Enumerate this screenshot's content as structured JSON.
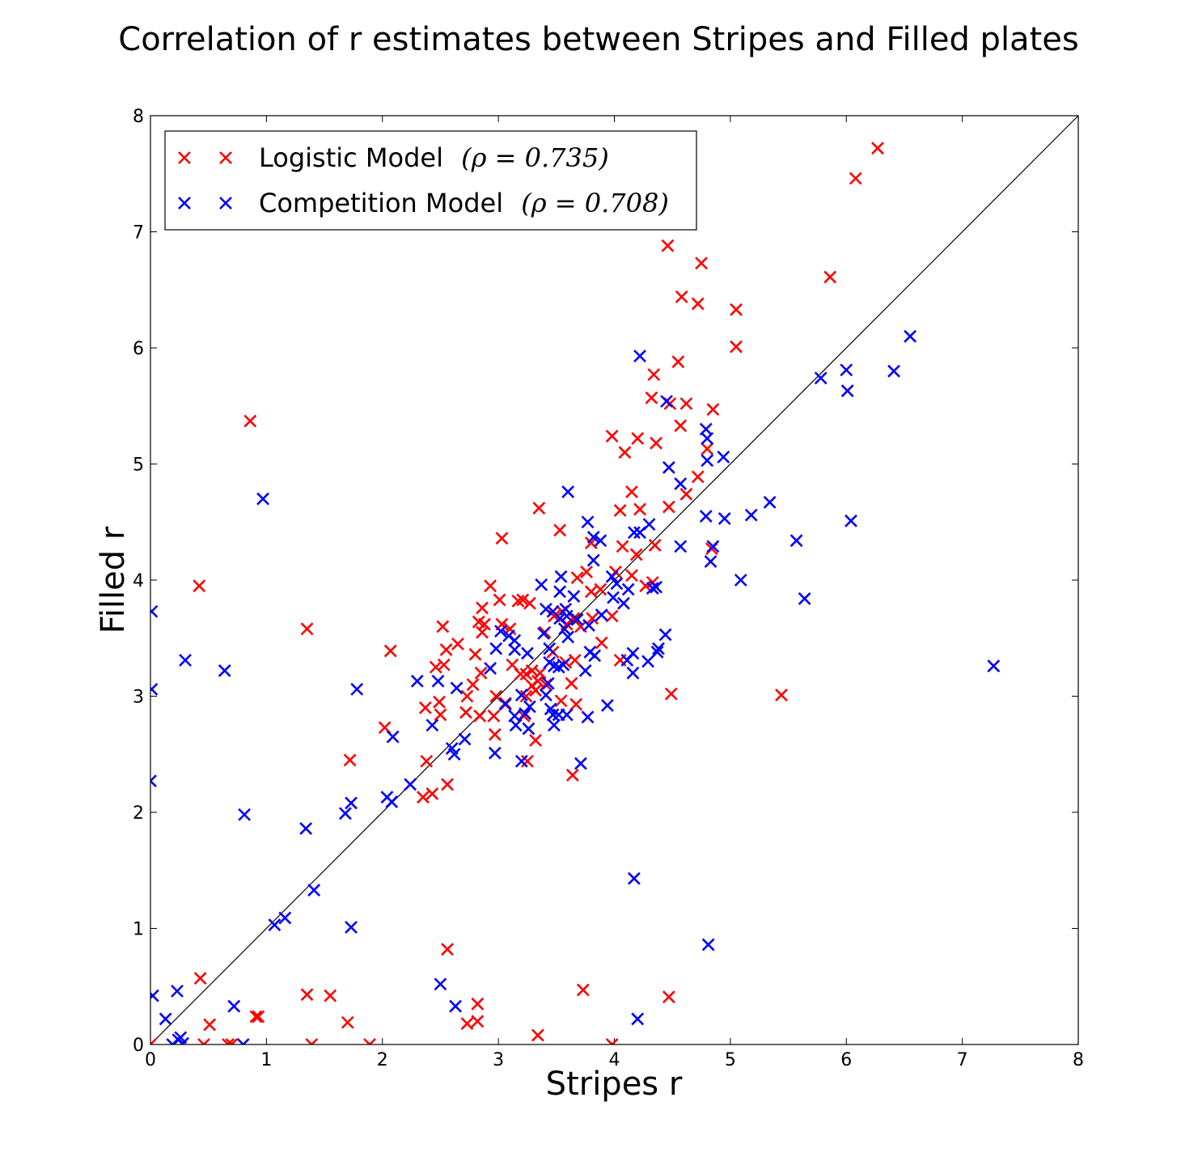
{
  "chart_data": {
    "type": "scatter",
    "title": "Correlation of r estimates between Stripes and Filled plates",
    "xlabel": "Stripes r",
    "ylabel": "Filled r",
    "xlim": [
      0,
      8
    ],
    "ylim": [
      0,
      8
    ],
    "xticks": [
      "0",
      "1",
      "2",
      "3",
      "4",
      "5",
      "6",
      "7",
      "8"
    ],
    "yticks": [
      "0",
      "1",
      "2",
      "3",
      "4",
      "5",
      "6",
      "7",
      "8"
    ],
    "reference_line": "y = x",
    "legend_position": "upper-left",
    "grid": false,
    "series": [
      {
        "name": "Logistic Model",
        "rho_label": "(ρ = 0.735)",
        "color": "#ff0000",
        "marker": "x",
        "points": [
          [
            6.27,
            7.72
          ],
          [
            6.08,
            7.46
          ],
          [
            4.46,
            6.88
          ],
          [
            4.75,
            6.73
          ],
          [
            5.86,
            6.61
          ],
          [
            4.58,
            6.44
          ],
          [
            4.72,
            6.38
          ],
          [
            5.05,
            6.33
          ],
          [
            5.05,
            6.01
          ],
          [
            4.55,
            5.88
          ],
          [
            4.34,
            5.77
          ],
          [
            4.32,
            5.57
          ],
          [
            4.48,
            5.52
          ],
          [
            4.62,
            5.52
          ],
          [
            4.85,
            5.47
          ],
          [
            0.86,
            5.37
          ],
          [
            4.57,
            5.33
          ],
          [
            3.98,
            5.24
          ],
          [
            4.2,
            5.22
          ],
          [
            4.36,
            5.18
          ],
          [
            4.09,
            5.1
          ],
          [
            4.8,
            5.13
          ],
          [
            4.72,
            4.89
          ],
          [
            4.15,
            4.76
          ],
          [
            4.62,
            4.74
          ],
          [
            4.47,
            4.63
          ],
          [
            3.35,
            4.62
          ],
          [
            4.22,
            4.61
          ],
          [
            4.05,
            4.6
          ],
          [
            3.53,
            4.43
          ],
          [
            3.03,
            4.36
          ],
          [
            4.07,
            4.29
          ],
          [
            4.35,
            4.3
          ],
          [
            4.19,
            4.22
          ],
          [
            4.84,
            4.27
          ],
          [
            3.8,
            4.32
          ],
          [
            3.68,
            4.02
          ],
          [
            3.76,
            4.07
          ],
          [
            3.8,
            3.9
          ],
          [
            3.88,
            3.92
          ],
          [
            4.01,
            4.07
          ],
          [
            4.15,
            4.04
          ],
          [
            4.27,
            3.95
          ],
          [
            4.33,
            3.98
          ],
          [
            0.42,
            3.95
          ],
          [
            2.93,
            3.95
          ],
          [
            3.17,
            3.82
          ],
          [
            3.21,
            3.83
          ],
          [
            3.27,
            3.8
          ],
          [
            3.01,
            3.83
          ],
          [
            2.86,
            3.76
          ],
          [
            3.48,
            3.69
          ],
          [
            3.55,
            3.73
          ],
          [
            3.59,
            3.62
          ],
          [
            3.65,
            3.67
          ],
          [
            3.71,
            3.6
          ],
          [
            3.81,
            3.67
          ],
          [
            3.98,
            3.69
          ],
          [
            2.52,
            3.6
          ],
          [
            2.83,
            3.64
          ],
          [
            2.88,
            3.62
          ],
          [
            3.03,
            3.62
          ],
          [
            1.35,
            3.58
          ],
          [
            2.65,
            3.45
          ],
          [
            2.86,
            3.55
          ],
          [
            3.1,
            3.58
          ],
          [
            3.4,
            3.55
          ],
          [
            2.55,
            3.4
          ],
          [
            2.8,
            3.36
          ],
          [
            3.47,
            3.38
          ],
          [
            3.66,
            3.31
          ],
          [
            3.58,
            3.29
          ],
          [
            2.07,
            3.39
          ],
          [
            2.46,
            3.25
          ],
          [
            2.53,
            3.27
          ],
          [
            2.85,
            3.2
          ],
          [
            3.12,
            3.27
          ],
          [
            3.19,
            3.19
          ],
          [
            3.24,
            3.19
          ],
          [
            3.29,
            3.22
          ],
          [
            3.36,
            3.2
          ],
          [
            3.29,
            3.09
          ],
          [
            3.34,
            3.13
          ],
          [
            3.41,
            3.1
          ],
          [
            3.63,
            3.11
          ],
          [
            3.89,
            3.46
          ],
          [
            2.78,
            3.1
          ],
          [
            2.73,
            3.0
          ],
          [
            2.98,
            3.0
          ],
          [
            3.24,
            3.0
          ],
          [
            3.32,
            3.05
          ],
          [
            2.49,
            2.95
          ],
          [
            2.37,
            2.9
          ],
          [
            2.5,
            2.84
          ],
          [
            2.72,
            2.86
          ],
          [
            2.84,
            2.83
          ],
          [
            2.96,
            2.83
          ],
          [
            3.22,
            2.83
          ],
          [
            3.06,
            2.94
          ],
          [
            3.54,
            2.96
          ],
          [
            3.67,
            2.93
          ],
          [
            2.02,
            2.73
          ],
          [
            2.97,
            2.67
          ],
          [
            3.32,
            2.62
          ],
          [
            3.25,
            2.44
          ],
          [
            1.72,
            2.45
          ],
          [
            2.38,
            2.44
          ],
          [
            3.64,
            2.32
          ],
          [
            2.56,
            2.24
          ],
          [
            2.35,
            2.13
          ],
          [
            2.43,
            2.16
          ],
          [
            4.05,
            3.31
          ],
          [
            4.49,
            3.02
          ],
          [
            5.44,
            3.01
          ],
          [
            0.43,
            0.57
          ],
          [
            0.51,
            0.17
          ],
          [
            0.91,
            0.24
          ],
          [
            0.93,
            0.24
          ],
          [
            1.35,
            0.43
          ],
          [
            1.55,
            0.42
          ],
          [
            1.7,
            0.19
          ],
          [
            2.56,
            0.82
          ],
          [
            2.73,
            0.18
          ],
          [
            2.82,
            0.35
          ],
          [
            2.82,
            0.2
          ],
          [
            3.73,
            0.47
          ],
          [
            4.47,
            0.41
          ],
          [
            3.34,
            0.08
          ],
          [
            0.0,
            0.0
          ],
          [
            0.46,
            0.0
          ],
          [
            0.67,
            0.0
          ],
          [
            0.7,
            0.0
          ],
          [
            1.39,
            0.0
          ],
          [
            1.89,
            0.0
          ],
          [
            3.98,
            0.0
          ]
        ]
      },
      {
        "name": "Competition Model",
        "rho_label": "(ρ = 0.708)",
        "color": "#0000ff",
        "marker": "x",
        "points": [
          [
            6.55,
            6.1
          ],
          [
            4.22,
            5.93
          ],
          [
            6.0,
            5.81
          ],
          [
            6.41,
            5.8
          ],
          [
            5.78,
            5.74
          ],
          [
            6.01,
            5.63
          ],
          [
            4.45,
            5.54
          ],
          [
            4.79,
            5.3
          ],
          [
            4.8,
            5.22
          ],
          [
            4.94,
            5.06
          ],
          [
            4.47,
            4.97
          ],
          [
            4.8,
            5.03
          ],
          [
            4.57,
            4.83
          ],
          [
            0.97,
            4.7
          ],
          [
            3.6,
            4.76
          ],
          [
            5.34,
            4.67
          ],
          [
            5.18,
            4.56
          ],
          [
            4.79,
            4.55
          ],
          [
            4.95,
            4.53
          ],
          [
            3.77,
            4.5
          ],
          [
            4.3,
            4.48
          ],
          [
            6.04,
            4.51
          ],
          [
            4.17,
            4.41
          ],
          [
            4.22,
            4.41
          ],
          [
            3.82,
            4.37
          ],
          [
            3.88,
            4.34
          ],
          [
            5.57,
            4.34
          ],
          [
            4.57,
            4.29
          ],
          [
            4.85,
            4.29
          ],
          [
            4.83,
            4.16
          ],
          [
            3.82,
            4.17
          ],
          [
            5.09,
            4.0
          ],
          [
            3.54,
            4.03
          ],
          [
            3.98,
            4.03
          ],
          [
            3.37,
            3.96
          ],
          [
            4.02,
            3.97
          ],
          [
            4.12,
            3.92
          ],
          [
            4.33,
            3.93
          ],
          [
            4.36,
            3.94
          ],
          [
            3.53,
            3.9
          ],
          [
            3.65,
            3.86
          ],
          [
            3.99,
            3.85
          ],
          [
            5.64,
            3.84
          ],
          [
            4.08,
            3.8
          ],
          [
            3.41,
            3.75
          ],
          [
            3.47,
            3.73
          ],
          [
            3.58,
            3.75
          ],
          [
            0.01,
            3.73
          ],
          [
            3.53,
            3.67
          ],
          [
            3.59,
            3.69
          ],
          [
            3.68,
            3.66
          ],
          [
            3.89,
            3.7
          ],
          [
            3.09,
            3.52
          ],
          [
            3.39,
            3.54
          ],
          [
            3.57,
            3.58
          ],
          [
            3.6,
            3.51
          ],
          [
            3.78,
            3.61
          ],
          [
            3.02,
            3.56
          ],
          [
            3.14,
            3.48
          ],
          [
            4.44,
            3.53
          ],
          [
            2.98,
            3.41
          ],
          [
            3.14,
            3.4
          ],
          [
            3.25,
            3.37
          ],
          [
            3.44,
            3.41
          ],
          [
            3.79,
            3.38
          ],
          [
            3.83,
            3.35
          ],
          [
            4.16,
            3.37
          ],
          [
            4.38,
            3.41
          ],
          [
            4.37,
            3.38
          ],
          [
            7.27,
            3.26
          ],
          [
            0.3,
            3.31
          ],
          [
            2.93,
            3.24
          ],
          [
            3.44,
            3.29
          ],
          [
            3.48,
            3.26
          ],
          [
            3.52,
            3.25
          ],
          [
            3.56,
            3.27
          ],
          [
            3.75,
            3.22
          ],
          [
            4.11,
            3.31
          ],
          [
            4.29,
            3.3
          ],
          [
            0.64,
            3.22
          ],
          [
            2.48,
            3.13
          ],
          [
            2.3,
            3.13
          ],
          [
            3.43,
            3.11
          ],
          [
            1.78,
            3.06
          ],
          [
            2.64,
            3.07
          ],
          [
            0.01,
            3.06
          ],
          [
            3.2,
            3.01
          ],
          [
            3.41,
            3.01
          ],
          [
            3.06,
            2.93
          ],
          [
            3.27,
            2.91
          ],
          [
            3.45,
            2.89
          ],
          [
            3.47,
            2.84
          ],
          [
            3.52,
            2.84
          ],
          [
            3.59,
            2.84
          ],
          [
            3.23,
            2.85
          ],
          [
            3.14,
            2.83
          ],
          [
            3.15,
            2.75
          ],
          [
            3.48,
            2.75
          ],
          [
            3.77,
            2.82
          ],
          [
            3.94,
            2.92
          ],
          [
            2.43,
            2.75
          ],
          [
            2.09,
            2.65
          ],
          [
            2.71,
            2.63
          ],
          [
            2.6,
            2.55
          ],
          [
            2.62,
            2.5
          ],
          [
            2.97,
            2.51
          ],
          [
            3.26,
            2.72
          ],
          [
            3.2,
            2.44
          ],
          [
            3.71,
            2.42
          ],
          [
            2.24,
            2.24
          ],
          [
            2.04,
            2.13
          ],
          [
            2.08,
            2.09
          ],
          [
            1.73,
            2.08
          ],
          [
            1.68,
            1.99
          ],
          [
            0.81,
            1.98
          ],
          [
            1.34,
            1.86
          ],
          [
            4.16,
            3.2
          ],
          [
            0.0,
            2.27
          ],
          [
            1.41,
            1.33
          ],
          [
            4.17,
            1.43
          ],
          [
            1.07,
            1.03
          ],
          [
            1.16,
            1.09
          ],
          [
            1.73,
            1.01
          ],
          [
            4.81,
            0.86
          ],
          [
            2.5,
            0.52
          ],
          [
            0.02,
            0.42
          ],
          [
            0.23,
            0.46
          ],
          [
            0.72,
            0.33
          ],
          [
            2.63,
            0.33
          ],
          [
            0.13,
            0.22
          ],
          [
            4.2,
            0.22
          ],
          [
            0.26,
            0.06
          ],
          [
            0.24,
            0.04
          ],
          [
            0.19,
            0.0
          ],
          [
            0.28,
            0.01
          ],
          [
            0.8,
            0.0
          ]
        ]
      }
    ]
  }
}
